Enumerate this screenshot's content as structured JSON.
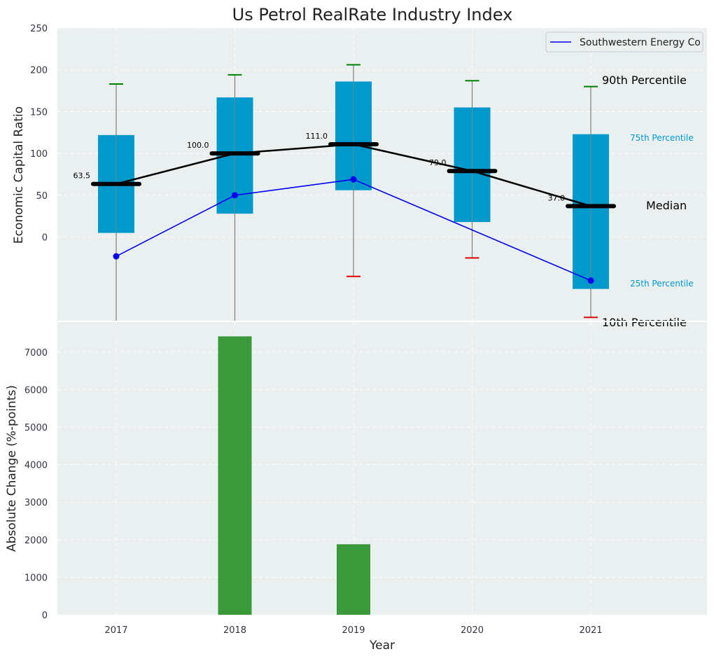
{
  "chart_data": [
    {
      "type": "box",
      "title": "Us Petrol RealRate Industry Index",
      "xlabel": "",
      "ylabel": "Economic Capital Ratio",
      "ylim": [
        -100,
        250
      ],
      "yticks": [
        0,
        50,
        100,
        150,
        200,
        250
      ],
      "categories": [
        "2017",
        "2018",
        "2019",
        "2020",
        "2021"
      ],
      "percentile_labels": {
        "p90": "90th Percentile",
        "p75": "75th Percentile",
        "median": "Median",
        "p25": "25th Percentile",
        "p10": "10th Percentile"
      },
      "colors": {
        "box": "#0099cc",
        "whisker_top": "#008000",
        "whisker_bottom": "#e00000",
        "median": "#000000",
        "series": "#0000ee",
        "background": "#eaeff0"
      },
      "boxes": [
        {
          "year": "2017",
          "p10": null,
          "p25": 5,
          "median": 63.5,
          "p75": 122,
          "p90": 183,
          "median_label": "63.5"
        },
        {
          "year": "2018",
          "p10": null,
          "p25": 28,
          "median": 100.0,
          "p75": 167,
          "p90": 194,
          "median_label": "100.0"
        },
        {
          "year": "2019",
          "p10": -47,
          "p25": 56,
          "median": 111.0,
          "p75": 186,
          "p90": 206,
          "median_label": "111.0"
        },
        {
          "year": "2020",
          "p10": -25,
          "p25": 18,
          "median": 79.0,
          "p75": 155,
          "p90": 187,
          "median_label": "79.0"
        },
        {
          "year": "2021",
          "p10": -96,
          "p25": -62,
          "median": 37.0,
          "p75": 123,
          "p90": 180,
          "median_label": "37.0"
        }
      ],
      "series": [
        {
          "name": "Southwestern Energy Co",
          "values": [
            -23,
            50,
            69,
            null,
            -52
          ]
        }
      ],
      "legend": "top-right"
    },
    {
      "type": "bar",
      "title": "",
      "xlabel": "Year",
      "ylabel": "Absolute Change (%-points)",
      "ylim": [
        0,
        7800
      ],
      "yticks": [
        0,
        1000,
        2000,
        3000,
        4000,
        5000,
        6000,
        7000
      ],
      "categories": [
        "2017",
        "2018",
        "2019",
        "2020",
        "2021"
      ],
      "values": [
        0,
        7420,
        1880,
        0,
        0
      ],
      "color": "#3a9a3a"
    }
  ]
}
